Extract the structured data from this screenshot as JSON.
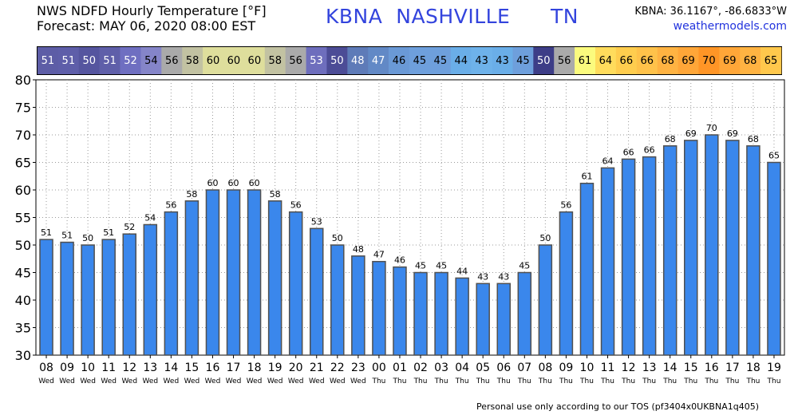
{
  "header": {
    "title_line1": "NWS NDFD Hourly Temperature [°F]",
    "title_line2": "Forecast: MAY 06, 2020 08:00 EST",
    "location": "KBNA  NASHVILLE      TN",
    "coords": "KBNA: 36.1167°, -86.6833°W",
    "website": "weathermodels.com"
  },
  "footer": {
    "note": "Personal use only according to our TOS (pf3404x0UKBNA1q405)"
  },
  "colors": {
    "bar": "#3a87ec",
    "bar_stroke": "#505050",
    "grid": "#9a9a9a"
  },
  "chart_data": {
    "type": "bar",
    "categories": [
      "08",
      "09",
      "10",
      "11",
      "12",
      "13",
      "14",
      "15",
      "16",
      "17",
      "18",
      "19",
      "20",
      "21",
      "22",
      "23",
      "00",
      "01",
      "02",
      "03",
      "04",
      "05",
      "06",
      "07",
      "08",
      "09",
      "10",
      "11",
      "12",
      "13",
      "14",
      "15",
      "16",
      "17",
      "18",
      "19"
    ],
    "days": [
      "Wed",
      "Wed",
      "Wed",
      "Wed",
      "Wed",
      "Wed",
      "Wed",
      "Wed",
      "Wed",
      "Wed",
      "Wed",
      "Wed",
      "Wed",
      "Wed",
      "Wed",
      "Wed",
      "Thu",
      "Thu",
      "Thu",
      "Thu",
      "Thu",
      "Thu",
      "Thu",
      "Thu",
      "Thu",
      "Thu",
      "Thu",
      "Thu",
      "Thu",
      "Thu",
      "Thu",
      "Thu",
      "Thu",
      "Thu",
      "Thu",
      "Thu"
    ],
    "values": [
      51,
      50.5,
      50,
      51,
      52,
      53.7,
      56,
      58,
      60,
      60,
      60,
      58,
      56,
      53,
      50,
      48,
      47,
      46,
      45,
      45,
      44,
      43,
      43,
      45,
      50,
      56,
      61.2,
      64,
      65.6,
      66,
      68,
      69,
      70,
      69,
      68,
      65
    ],
    "labels": [
      "51",
      "51",
      "50",
      "51",
      "52",
      "54",
      "56",
      "58",
      "60",
      "60",
      "60",
      "58",
      "56",
      "53",
      "50",
      "48",
      "47",
      "46",
      "45",
      "45",
      "44",
      "43",
      "43",
      "45",
      "50",
      "56",
      "61",
      "64",
      "66",
      "66",
      "68",
      "69",
      "70",
      "69",
      "68",
      "65"
    ],
    "strip_colors": [
      "#5d5da6",
      "#5e5ea9",
      "#55559f",
      "#5f5fa9",
      "#6f6fc1",
      "#8585c9",
      "#aaaaaa",
      "#c2c2a2",
      "#dede9c",
      "#dede9c",
      "#dede9c",
      "#c2c2a2",
      "#aaaaaa",
      "#6e6ebd",
      "#4c4c96",
      "#5e7bb8",
      "#6289c6",
      "#6a99d6",
      "#6e9fdc",
      "#6e9fdc",
      "#6aaee8",
      "#6eb2ea",
      "#6aaee8",
      "#6e9fdc",
      "#3d3d87",
      "#aaaaaa",
      "#fbfb7e",
      "#ffdc5c",
      "#ffcd4e",
      "#ffc24a",
      "#ffb342",
      "#ffa638",
      "#ff9526",
      "#ffa638",
      "#ffb342",
      "#ffc84c"
    ],
    "ylim": [
      30,
      80
    ],
    "yticks": [
      30,
      35,
      40,
      45,
      50,
      55,
      60,
      65,
      70,
      75,
      80
    ],
    "grid": true,
    "legend": "none"
  }
}
